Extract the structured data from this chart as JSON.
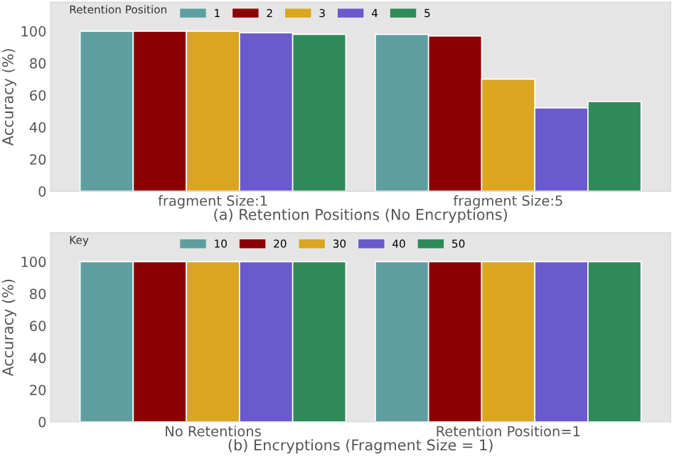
{
  "chart_data": [
    {
      "type": "bar",
      "categories": [
        "fragment Size:1",
        "fragment Size:5"
      ],
      "xlabel": "(a) Retention Positions (No Encryptions)",
      "ylabel": "Accuracy (%)",
      "legend_title": "Retention Position",
      "legend": "top left",
      "grid": false,
      "ylim": [
        0,
        118
      ],
      "yticks": [
        0,
        20,
        40,
        60,
        80,
        100
      ],
      "series": [
        {
          "name": "1",
          "color": "#5f9ea0",
          "values": [
            100,
            98
          ]
        },
        {
          "name": "2",
          "color": "#8b0000",
          "values": [
            100,
            97
          ]
        },
        {
          "name": "3",
          "color": "#daa520",
          "values": [
            100,
            70
          ]
        },
        {
          "name": "4",
          "color": "#6a5acd",
          "values": [
            99,
            52
          ]
        },
        {
          "name": "5",
          "color": "#2e8b57",
          "values": [
            98,
            56
          ]
        }
      ]
    },
    {
      "type": "bar",
      "categories": [
        "No Retentions",
        "Retention Position=1"
      ],
      "xlabel": "(b) Encryptions (Fragment Size = 1)",
      "ylabel": "Accuracy (%)",
      "legend_title": "Key",
      "legend": "top left",
      "grid": false,
      "ylim": [
        0,
        118
      ],
      "yticks": [
        0,
        20,
        40,
        60,
        80,
        100
      ],
      "series": [
        {
          "name": "10",
          "color": "#5f9ea0",
          "values": [
            100,
            100
          ]
        },
        {
          "name": "20",
          "color": "#8b0000",
          "values": [
            100,
            100
          ]
        },
        {
          "name": "30",
          "color": "#daa520",
          "values": [
            100,
            100
          ]
        },
        {
          "name": "40",
          "color": "#6a5acd",
          "values": [
            100,
            100
          ]
        },
        {
          "name": "50",
          "color": "#2e8b57",
          "values": [
            100,
            100
          ]
        }
      ]
    }
  ]
}
